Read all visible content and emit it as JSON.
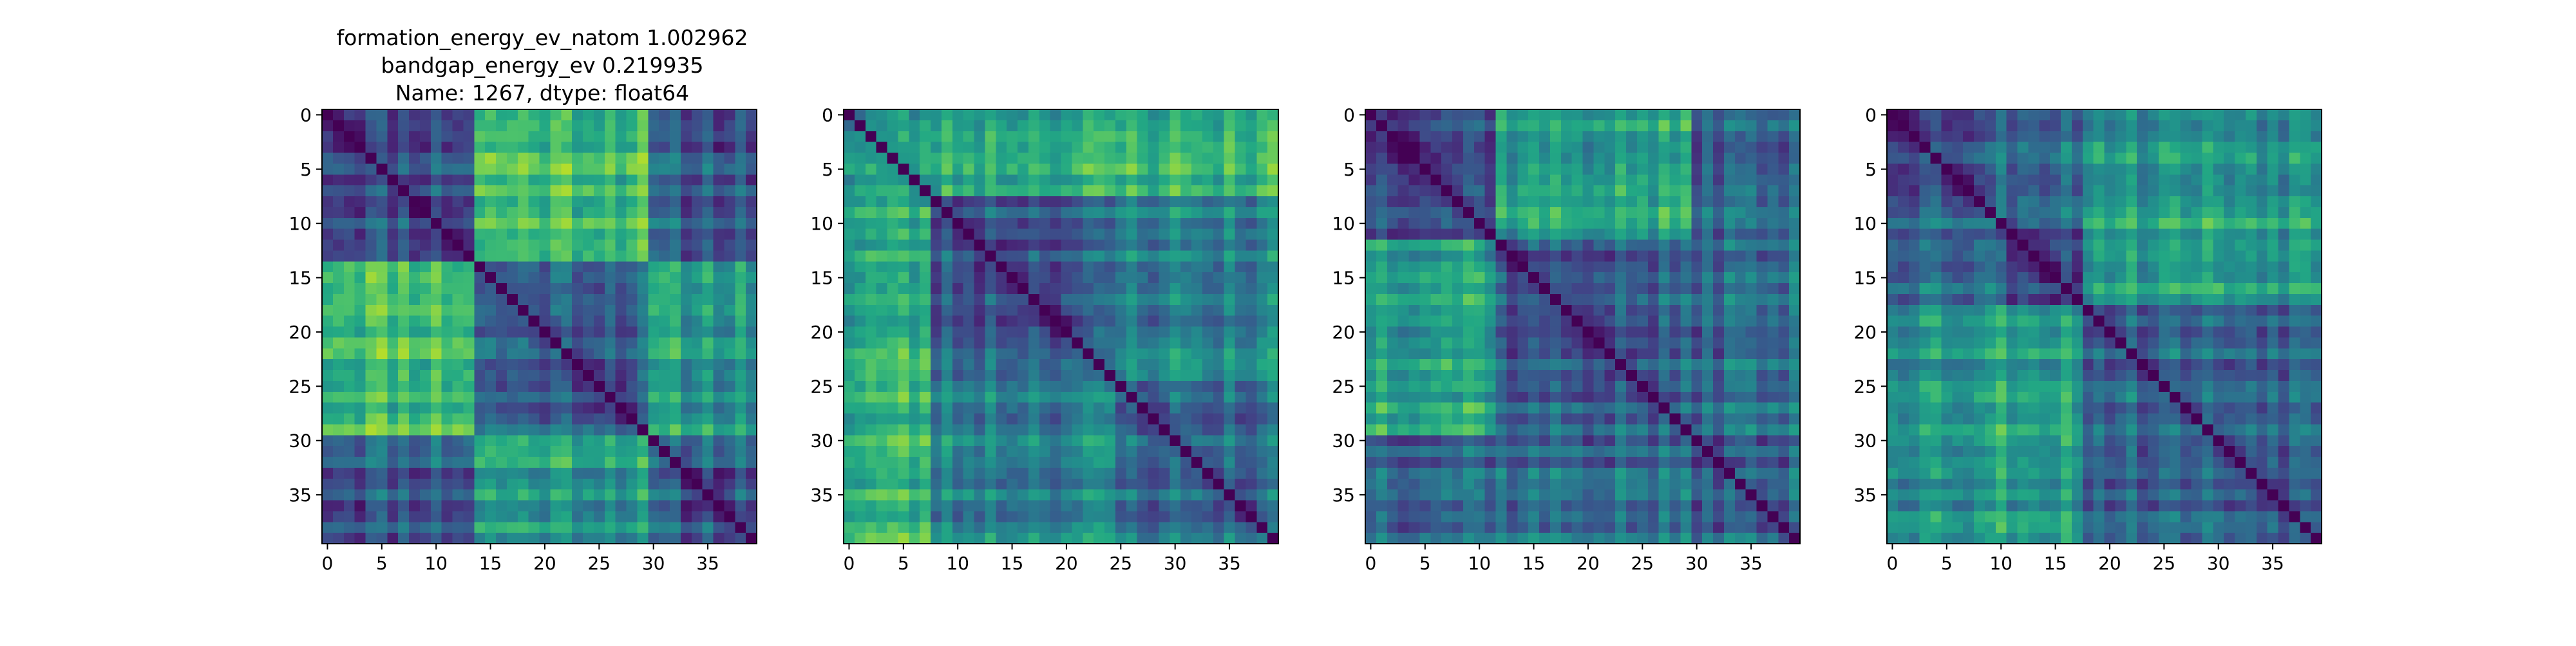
{
  "figure": {
    "title_lines": [
      "formation_energy_ev_natom    1.002962",
      "bandgap_energy_ev            0.219935",
      "Name: 1267, dtype: float64"
    ]
  },
  "chart_data": [
    {
      "type": "heatmap",
      "colormap": "viridis",
      "matrix_size": 40,
      "xlim": [
        -0.5,
        39.5
      ],
      "ylim": [
        39.5,
        -0.5
      ],
      "xticks": [
        0,
        5,
        10,
        15,
        20,
        25,
        30,
        35
      ],
      "yticks": [
        0,
        5,
        10,
        15,
        20,
        25,
        30,
        35
      ],
      "diagonal": 0,
      "block_boundaries": [
        0,
        14,
        30,
        40
      ],
      "block_levels": [
        [
          0.28,
          0.72,
          0.3
        ],
        [
          0.72,
          0.32,
          0.55
        ],
        [
          0.3,
          0.55,
          0.3
        ]
      ],
      "seed": 11
    },
    {
      "type": "heatmap",
      "colormap": "viridis",
      "matrix_size": 40,
      "xlim": [
        -0.5,
        39.5
      ],
      "ylim": [
        39.5,
        -0.5
      ],
      "xticks": [
        0,
        5,
        10,
        15,
        20,
        25,
        30,
        35
      ],
      "yticks": [
        0,
        5,
        10,
        15,
        20,
        25,
        30,
        35
      ],
      "diagonal": 0,
      "block_boundaries": [
        0,
        8,
        25,
        40
      ],
      "block_levels": [
        [
          0.55,
          0.62,
          0.65
        ],
        [
          0.62,
          0.3,
          0.45
        ],
        [
          0.65,
          0.45,
          0.35
        ]
      ],
      "seed": 23
    },
    {
      "type": "heatmap",
      "colormap": "viridis",
      "matrix_size": 40,
      "xlim": [
        -0.5,
        39.5
      ],
      "ylim": [
        39.5,
        -0.5
      ],
      "xticks": [
        0,
        5,
        10,
        15,
        20,
        25,
        30,
        35
      ],
      "yticks": [
        0,
        5,
        10,
        15,
        20,
        25,
        30,
        35
      ],
      "diagonal": 0,
      "block_boundaries": [
        0,
        12,
        30,
        40
      ],
      "block_levels": [
        [
          0.3,
          0.6,
          0.35
        ],
        [
          0.6,
          0.28,
          0.35
        ],
        [
          0.35,
          0.35,
          0.3
        ]
      ],
      "seed": 37
    },
    {
      "type": "heatmap",
      "colormap": "viridis",
      "matrix_size": 40,
      "xlim": [
        -0.5,
        39.5
      ],
      "ylim": [
        39.5,
        -0.5
      ],
      "xticks": [
        0,
        5,
        10,
        15,
        20,
        25,
        30,
        35
      ],
      "yticks": [
        0,
        5,
        10,
        15,
        20,
        25,
        30,
        35
      ],
      "diagonal": 0,
      "block_boundaries": [
        0,
        10,
        18,
        40
      ],
      "block_levels": [
        [
          0.3,
          0.4,
          0.55
        ],
        [
          0.4,
          0.3,
          0.6
        ],
        [
          0.55,
          0.6,
          0.35
        ]
      ],
      "seed": 53
    }
  ]
}
